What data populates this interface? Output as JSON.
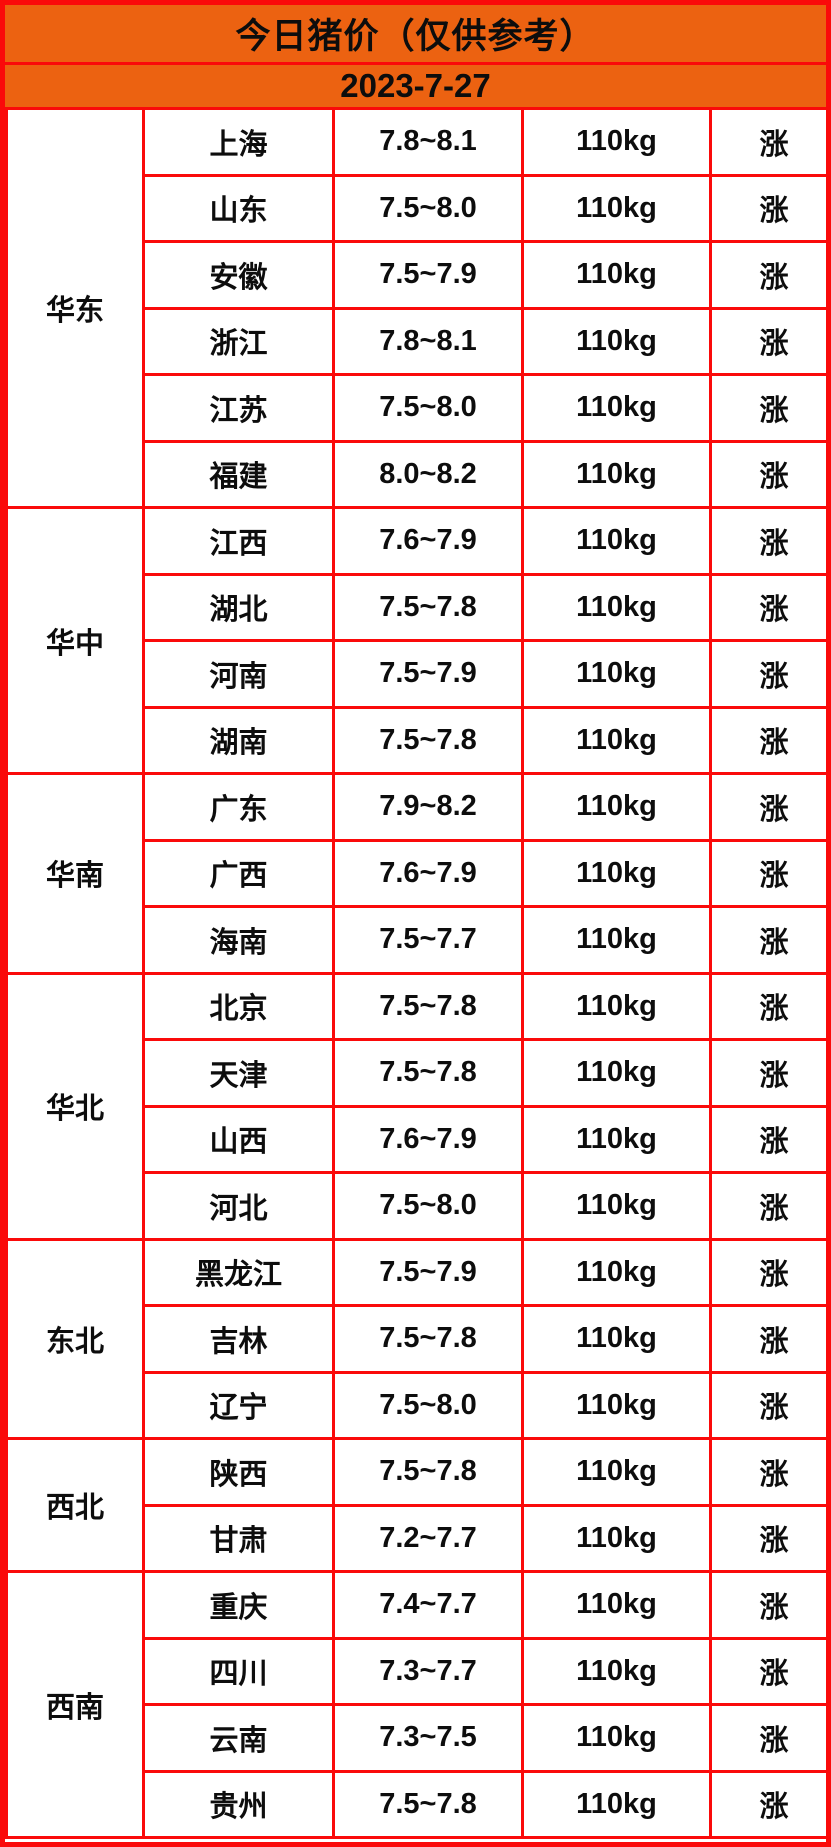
{
  "header": {
    "title": "今日猪价（仅供参考）",
    "date": "2023-7-27"
  },
  "colors": {
    "header_bg": "#ec6211",
    "grid_border": "#fa0a0a",
    "rise_text": "#fb4b52",
    "body_text": "#0d0d0d",
    "cell_bg": "#ffffff"
  },
  "chart_data": {
    "type": "table",
    "title": "今日猪价（仅供参考）",
    "date": "2023-7-27",
    "weight_standard": "110kg",
    "status_legend": {
      "rise": "涨"
    },
    "regions": [
      {
        "name": "华东",
        "rows": [
          {
            "province": "上海",
            "price": "7.8~8.1",
            "weight": "110kg",
            "status": "涨"
          },
          {
            "province": "山东",
            "price": "7.5~8.0",
            "weight": "110kg",
            "status": "涨"
          },
          {
            "province": "安徽",
            "price": "7.5~7.9",
            "weight": "110kg",
            "status": "涨"
          },
          {
            "province": "浙江",
            "price": "7.8~8.1",
            "weight": "110kg",
            "status": "涨"
          },
          {
            "province": "江苏",
            "price": "7.5~8.0",
            "weight": "110kg",
            "status": "涨"
          },
          {
            "province": "福建",
            "price": "8.0~8.2",
            "weight": "110kg",
            "status": "涨"
          }
        ]
      },
      {
        "name": "华中",
        "rows": [
          {
            "province": "江西",
            "price": "7.6~7.9",
            "weight": "110kg",
            "status": "涨"
          },
          {
            "province": "湖北",
            "price": "7.5~7.8",
            "weight": "110kg",
            "status": "涨"
          },
          {
            "province": "河南",
            "price": "7.5~7.9",
            "weight": "110kg",
            "status": "涨"
          },
          {
            "province": "湖南",
            "price": "7.5~7.8",
            "weight": "110kg",
            "status": "涨"
          }
        ]
      },
      {
        "name": "华南",
        "rows": [
          {
            "province": "广东",
            "price": "7.9~8.2",
            "weight": "110kg",
            "status": "涨"
          },
          {
            "province": "广西",
            "price": "7.6~7.9",
            "weight": "110kg",
            "status": "涨"
          },
          {
            "province": "海南",
            "price": "7.5~7.7",
            "weight": "110kg",
            "status": "涨"
          }
        ]
      },
      {
        "name": "华北",
        "rows": [
          {
            "province": "北京",
            "price": "7.5~7.8",
            "weight": "110kg",
            "status": "涨"
          },
          {
            "province": "天津",
            "price": "7.5~7.8",
            "weight": "110kg",
            "status": "涨"
          },
          {
            "province": "山西",
            "price": "7.6~7.9",
            "weight": "110kg",
            "status": "涨"
          },
          {
            "province": "河北",
            "price": "7.5~8.0",
            "weight": "110kg",
            "status": "涨"
          }
        ]
      },
      {
        "name": "东北",
        "rows": [
          {
            "province": "黑龙江",
            "price": "7.5~7.9",
            "weight": "110kg",
            "status": "涨"
          },
          {
            "province": "吉林",
            "price": "7.5~7.8",
            "weight": "110kg",
            "status": "涨"
          },
          {
            "province": "辽宁",
            "price": "7.5~8.0",
            "weight": "110kg",
            "status": "涨"
          }
        ]
      },
      {
        "name": "西北",
        "rows": [
          {
            "province": "陕西",
            "price": "7.5~7.8",
            "weight": "110kg",
            "status": "涨"
          },
          {
            "province": "甘肃",
            "price": "7.2~7.7",
            "weight": "110kg",
            "status": "涨"
          }
        ]
      },
      {
        "name": "西南",
        "rows": [
          {
            "province": "重庆",
            "price": "7.4~7.7",
            "weight": "110kg",
            "status": "涨"
          },
          {
            "province": "四川",
            "price": "7.3~7.7",
            "weight": "110kg",
            "status": "涨"
          },
          {
            "province": "云南",
            "price": "7.3~7.5",
            "weight": "110kg",
            "status": "涨"
          },
          {
            "province": "贵州",
            "price": "7.5~7.8",
            "weight": "110kg",
            "status": "涨"
          }
        ]
      }
    ]
  }
}
